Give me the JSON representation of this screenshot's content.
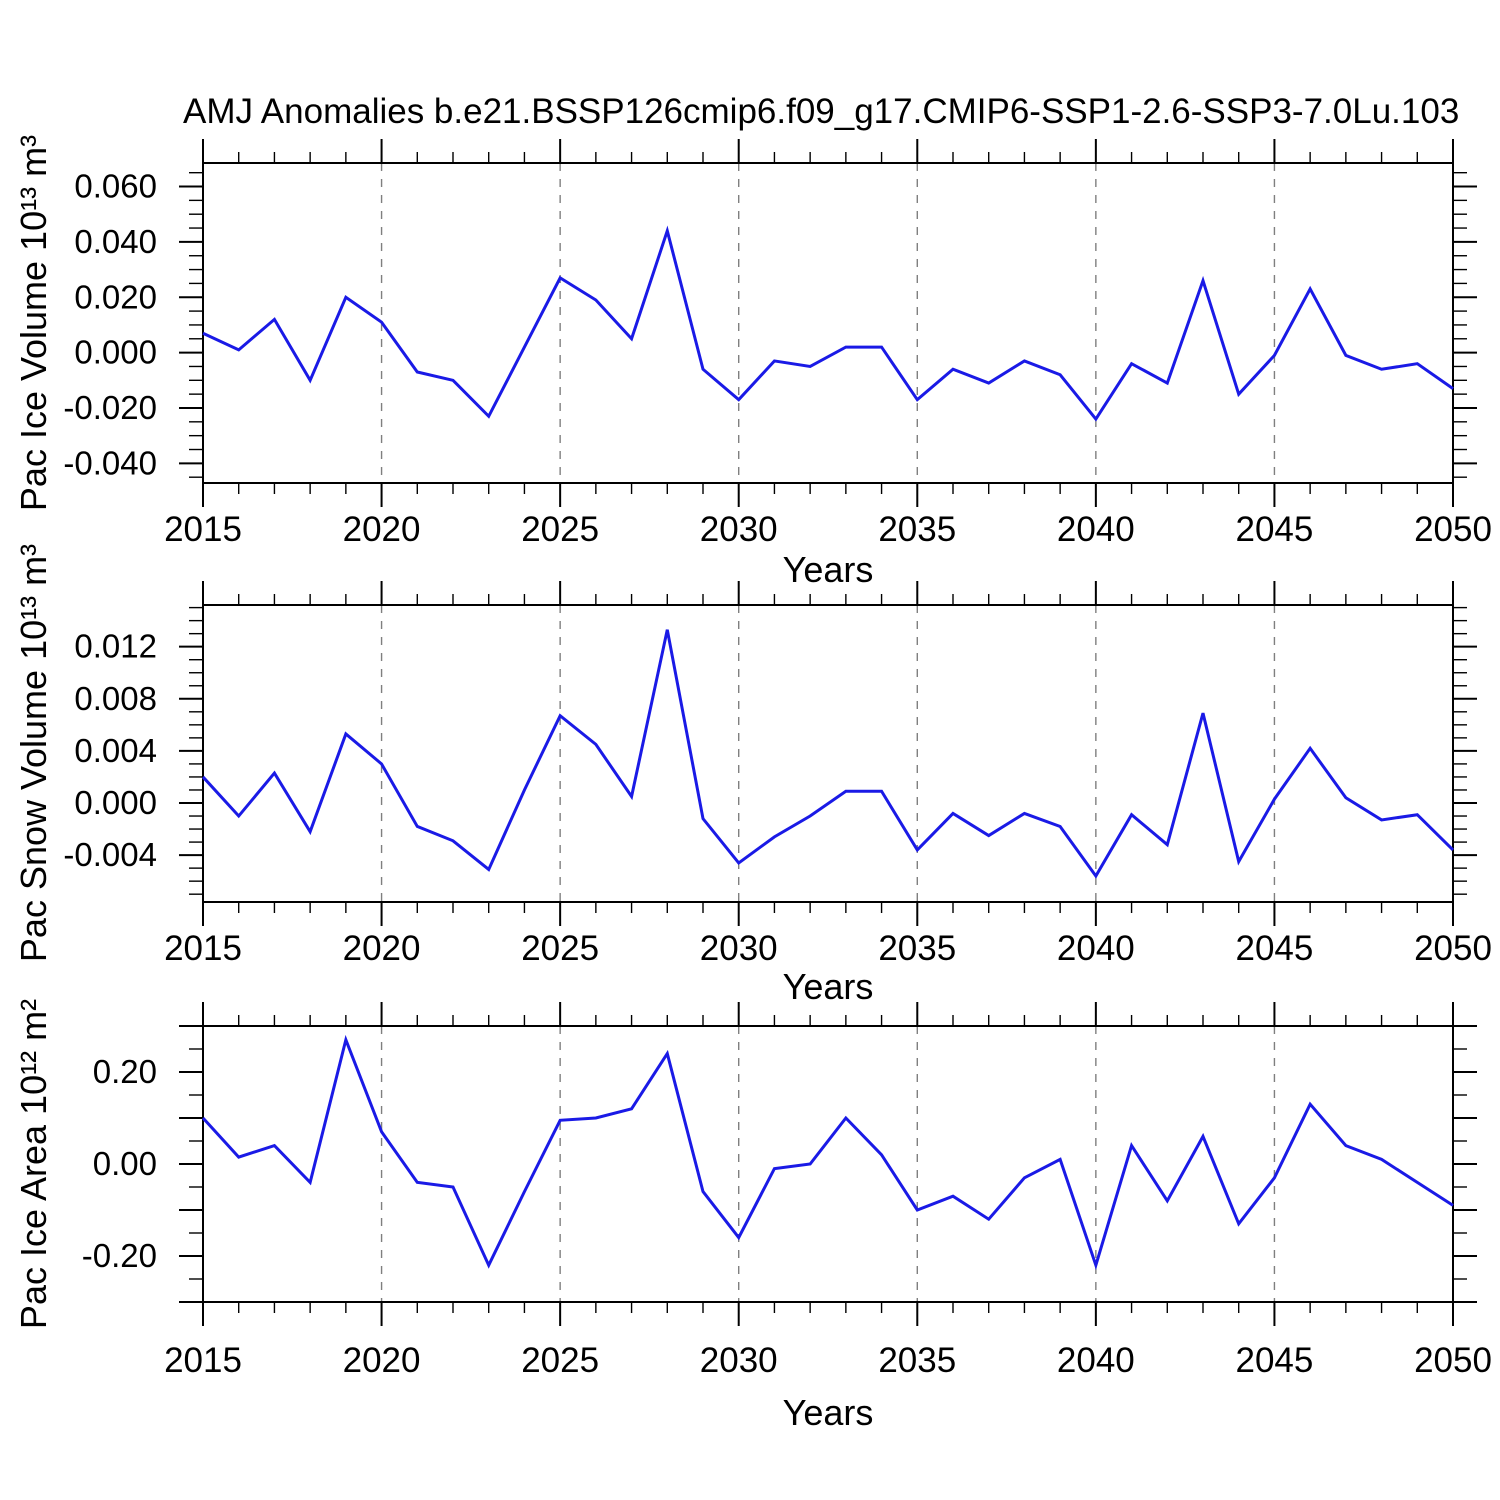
{
  "title": "AMJ Anomalies b.e21.BSSP126cmip6.f09_g17.CMIP6-SSP1-2.6-SSP3-7.0Lu.103",
  "x_axis": {
    "label": "Years",
    "range": [
      2015,
      2050
    ],
    "major_tick_years": [
      2015,
      2020,
      2025,
      2030,
      2035,
      2040,
      2045,
      2050
    ],
    "minor_tick_step": 1,
    "gridline_years": [
      2020,
      2025,
      2030,
      2035,
      2040,
      2045
    ],
    "gridline_style": "dashed"
  },
  "colors": {
    "line": "#1a1ae6",
    "grid": "#7f7f7f",
    "frame": "#000000",
    "background": "#ffffff",
    "text": "#000000"
  },
  "chart_data": [
    {
      "type": "line",
      "name": "pac-ice-volume",
      "ylabel": "Pac Ice Volume 10¹³ m³",
      "xlabel": "Years",
      "legend": "none",
      "grid": "vertical-dashed-only",
      "x": [
        2015,
        2016,
        2017,
        2018,
        2019,
        2020,
        2021,
        2022,
        2023,
        2024,
        2025,
        2026,
        2027,
        2028,
        2029,
        2030,
        2031,
        2032,
        2033,
        2034,
        2035,
        2036,
        2037,
        2038,
        2039,
        2040,
        2041,
        2042,
        2043,
        2044,
        2045,
        2046,
        2047,
        2048,
        2049,
        2050
      ],
      "values": [
        0.007,
        0.001,
        0.012,
        -0.01,
        0.02,
        0.011,
        -0.007,
        -0.01,
        -0.023,
        0.002,
        0.027,
        0.019,
        0.005,
        0.044,
        -0.006,
        -0.017,
        -0.003,
        -0.005,
        0.002,
        0.002,
        -0.017,
        -0.006,
        -0.011,
        -0.003,
        -0.008,
        -0.024,
        -0.004,
        -0.011,
        0.026,
        -0.015,
        -0.001,
        0.023,
        -0.001,
        -0.006,
        -0.004,
        -0.013
      ],
      "ylim": [
        -0.0471,
        0.0685
      ],
      "ytick_values": [
        0.06,
        0.04,
        0.02,
        0.0,
        -0.02,
        -0.04
      ],
      "ytick_labels": [
        "0.060",
        "0.040",
        "0.020",
        "0.000",
        "-0.020",
        "-0.040"
      ],
      "ylong_step": 0.02,
      "yminor_step": 0.005
    },
    {
      "type": "line",
      "name": "pac-snow-volume",
      "ylabel": "Pac Snow Volume 10¹³ m³",
      "xlabel": "Years",
      "legend": "none",
      "grid": "vertical-dashed-only",
      "x": [
        2015,
        2016,
        2017,
        2018,
        2019,
        2020,
        2021,
        2022,
        2023,
        2024,
        2025,
        2026,
        2027,
        2028,
        2029,
        2030,
        2031,
        2032,
        2033,
        2034,
        2035,
        2036,
        2037,
        2038,
        2039,
        2040,
        2041,
        2042,
        2043,
        2044,
        2045,
        2046,
        2047,
        2048,
        2049,
        2050
      ],
      "values": [
        0.002,
        -0.001,
        0.0023,
        -0.0022,
        0.0053,
        0.003,
        -0.0018,
        -0.0029,
        -0.0051,
        0.001,
        0.0067,
        0.0045,
        0.0005,
        0.0133,
        -0.0012,
        -0.0046,
        -0.0026,
        -0.001,
        0.0009,
        0.0009,
        -0.0036,
        -0.0008,
        -0.0025,
        -0.0008,
        -0.0018,
        -0.0056,
        -0.0009,
        -0.0032,
        0.0069,
        -0.0045,
        0.0003,
        0.0042,
        0.0004,
        -0.0013,
        -0.0009,
        -0.0036
      ],
      "ylim": [
        -0.0076,
        0.0152
      ],
      "ytick_values": [
        0.012,
        0.008,
        0.004,
        0.0,
        -0.004
      ],
      "ytick_labels": [
        "0.012",
        "0.008",
        "0.004",
        "0.000",
        "-0.004"
      ],
      "ylong_step": 0.004,
      "yminor_step": 0.001
    },
    {
      "type": "line",
      "name": "pac-ice-area",
      "ylabel": "Pac Ice Area 10¹² m²",
      "xlabel": "Years",
      "legend": "none",
      "grid": "vertical-dashed-only",
      "x": [
        2015,
        2016,
        2017,
        2018,
        2019,
        2020,
        2021,
        2022,
        2023,
        2024,
        2025,
        2026,
        2027,
        2028,
        2029,
        2030,
        2031,
        2032,
        2033,
        2034,
        2035,
        2036,
        2037,
        2038,
        2039,
        2040,
        2041,
        2042,
        2043,
        2044,
        2045,
        2046,
        2047,
        2048,
        2049,
        2050
      ],
      "values": [
        0.1,
        0.015,
        0.04,
        -0.04,
        0.27,
        0.07,
        -0.04,
        -0.05,
        -0.22,
        -0.06,
        0.095,
        0.1,
        0.12,
        0.24,
        -0.06,
        -0.16,
        -0.01,
        0.0,
        0.1,
        0.02,
        -0.1,
        -0.07,
        -0.12,
        -0.03,
        0.01,
        -0.22,
        0.04,
        -0.08,
        0.06,
        -0.13,
        -0.03,
        0.13,
        0.04,
        0.01,
        -0.04,
        -0.09
      ],
      "ylim": [
        -0.3,
        0.3
      ],
      "ytick_values": [
        0.2,
        0.0,
        -0.2
      ],
      "ytick_labels": [
        "0.20",
        "0.00",
        "-0.20"
      ],
      "ylong_step": 0.1,
      "yminor_step": 0.05
    }
  ]
}
